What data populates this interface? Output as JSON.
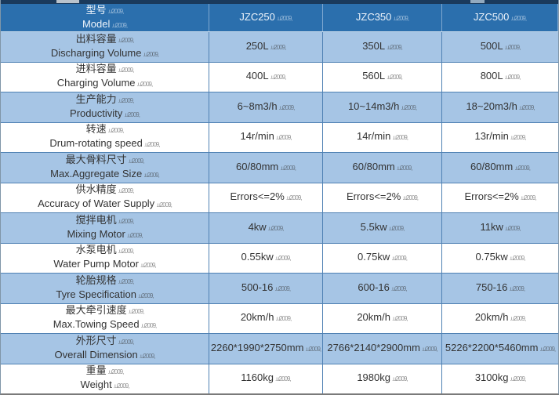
{
  "table": {
    "header": {
      "label_zh": "型号",
      "label_en": "Model",
      "models": [
        "JZC250",
        "JZC350",
        "JZC500"
      ]
    },
    "rows": [
      {
        "zh": "出料容量",
        "en": "Discharging Volume",
        "values": [
          "250L",
          "350L",
          "500L"
        ]
      },
      {
        "zh": "进料容量",
        "en": "Charging Volume",
        "values": [
          "400L",
          "560L",
          "800L"
        ]
      },
      {
        "zh": "生产能力",
        "en": "Productivity",
        "values": [
          "6~8m3/h",
          "10~14m3/h",
          "18~20m3/h"
        ]
      },
      {
        "zh": "转速",
        "en": "Drum-rotating speed",
        "values": [
          "14r/min",
          "14r/min",
          "13r/min"
        ]
      },
      {
        "zh": "最大骨料尺寸",
        "en": "Max.Aggregate Size",
        "values": [
          "60/80mm",
          "60/80mm",
          "60/80mm"
        ]
      },
      {
        "zh": "供水精度",
        "en": "Accuracy of Water Supply",
        "values": [
          "Errors<=2%",
          "Errors<=2%",
          "Errors<=2%"
        ]
      },
      {
        "zh": "搅拌电机",
        "en": "Mixing Motor",
        "values": [
          "4kw",
          "5.5kw",
          "11kw"
        ]
      },
      {
        "zh": "水泵电机",
        "en": "Water Pump Motor",
        "values": [
          "0.55kw",
          "0.75kw",
          "0.75kw"
        ]
      },
      {
        "zh": "轮胎规格",
        "en": "Tyre Specification",
        "values": [
          "500-16",
          "600-16",
          "750-16"
        ]
      },
      {
        "zh": "最大牵引速度",
        "en": "Max.Towing Speed",
        "values": [
          "20km/h",
          "20km/h",
          "20km/h"
        ]
      },
      {
        "zh": "外形尺寸",
        "en": "Overall Dimension",
        "values": [
          "2260*1990*2750mm",
          "2766*2140*2900mm",
          "5226*2200*5460mm"
        ]
      },
      {
        "zh": "重量",
        "en": "Weight",
        "values": [
          "1160kg",
          "1980kg",
          "3100kg"
        ]
      }
    ],
    "colors": {
      "header_bg": "#2b6fad",
      "header_text": "#eef4fb",
      "row_alt_bg": "#a6c5e5",
      "row_bg": "#ffffff",
      "grid_line": "#4f81b3",
      "top_strip": "#1a3a5c",
      "body_text": "#333333"
    }
  }
}
